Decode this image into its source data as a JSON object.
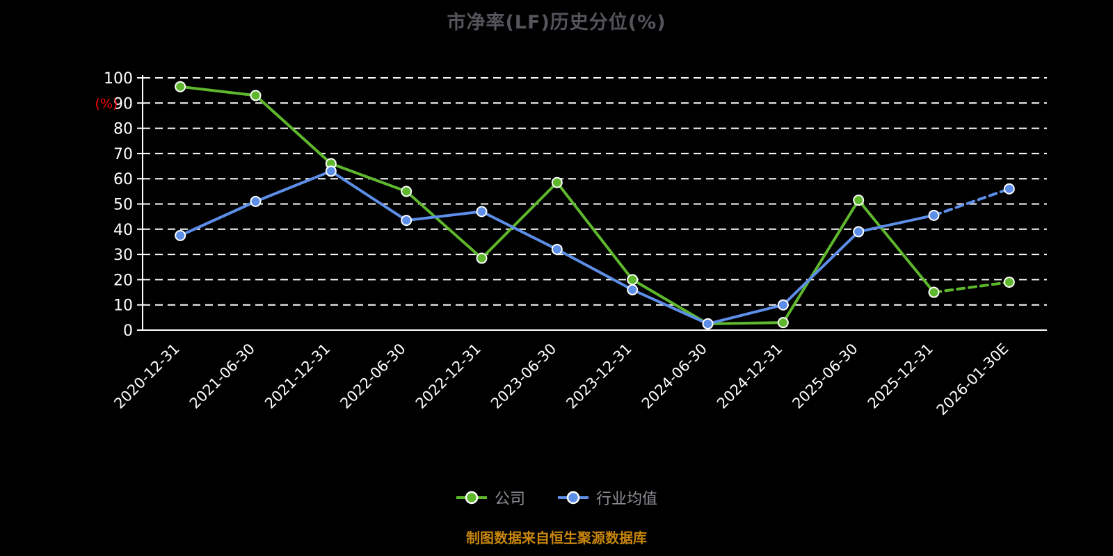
{
  "page": {
    "background": "#000000"
  },
  "chart": {
    "title": "市净率(LF)历史分位(%)",
    "source_note": "制图数据来自恒生聚源数据库"
  },
  "chart_data": {
    "type": "line",
    "title": "市净率(LF)历史分位(%)",
    "ylabel": "(%)",
    "ylim": [
      0,
      100
    ],
    "ytick_step": 10,
    "grid": true,
    "legend_position": "bottom",
    "categories": [
      "2020-12-31",
      "2021-06-30",
      "2021-12-31",
      "2022-06-30",
      "2022-12-31",
      "2023-06-30",
      "2023-12-31",
      "2024-06-30",
      "2024-12-31",
      "2025-06-30",
      "2025-12-31",
      "2026-01-30E"
    ],
    "series": [
      {
        "name": "公司",
        "color": "#5fb72d",
        "values": [
          96.5,
          93,
          66,
          55,
          28.5,
          58.5,
          20,
          2.5,
          3,
          51.5,
          15,
          19
        ]
      },
      {
        "name": "行业均值",
        "color": "#5d8ee8",
        "values": [
          37.5,
          51,
          63,
          43.5,
          47,
          32,
          16,
          2.5,
          10,
          39,
          45.5,
          56
        ]
      }
    ],
    "colors": {
      "axis": "#ffffff",
      "grid": "#ffffff",
      "tick_label": "#ffffff",
      "ylabel": "#ff0000",
      "title": "#54555b",
      "legend_text": "#8f9096",
      "source_note": "#c8860d"
    }
  }
}
